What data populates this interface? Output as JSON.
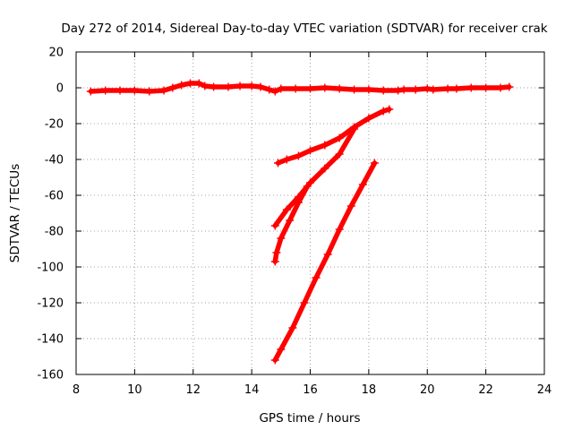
{
  "chart_data": {
    "type": "scatter",
    "title": "Day 272 of 2014, Sidereal Day-to-day VTEC variation (SDTVAR) for receiver crak",
    "xlabel": "GPS time / hours",
    "ylabel": "SDTVAR / TECUs",
    "xlim": [
      8,
      24
    ],
    "ylim": [
      -160,
      20
    ],
    "xticks": [
      8,
      10,
      12,
      14,
      16,
      18,
      20,
      22,
      24
    ],
    "yticks": [
      -160,
      -140,
      -120,
      -100,
      -80,
      -60,
      -40,
      -20,
      0,
      20
    ],
    "grid": true,
    "marker": "plus",
    "color": "#ff0000",
    "series": [
      {
        "x": [
          8.5,
          9.0,
          9.5,
          10.0,
          10.5,
          11.0,
          11.3,
          11.6,
          11.9,
          12.2,
          12.4,
          12.7,
          13.2,
          13.6,
          14.0,
          14.3,
          14.6,
          14.8,
          15.0,
          15.5,
          16.0,
          16.5,
          17.0,
          17.5,
          18.0,
          18.5,
          19.0,
          19.2,
          19.6,
          20.0,
          20.2,
          20.7,
          21.0,
          21.5,
          22.0,
          22.5,
          22.8
        ],
        "y": [
          -2,
          -1.5,
          -1.5,
          -1.5,
          -2,
          -1.5,
          0,
          1.5,
          2.5,
          2.5,
          1,
          0.5,
          0.5,
          1,
          1,
          0.5,
          -1,
          -2,
          -0.5,
          -0.5,
          -0.5,
          0,
          -0.5,
          -1,
          -1,
          -1.5,
          -1.5,
          -1,
          -1,
          -0.5,
          -1,
          -0.5,
          -0.5,
          0,
          0,
          0,
          0.5
        ]
      },
      {
        "x": [
          14.9,
          15.2,
          15.6,
          16.0,
          16.5,
          17.0,
          17.5,
          18.0,
          18.5,
          18.7
        ],
        "y": [
          -42,
          -40,
          -38,
          -35,
          -32,
          -28,
          -22,
          -17,
          -13,
          -12
        ]
      },
      {
        "x": [
          14.8,
          15.2,
          15.6,
          16.0,
          16.5,
          17.0,
          17.5
        ],
        "y": [
          -77,
          -68,
          -61,
          -53,
          -45,
          -37,
          -23
        ]
      },
      {
        "x": [
          14.8,
          14.85,
          15.0,
          15.3,
          15.6,
          15.9
        ],
        "y": [
          -97,
          -92,
          -84,
          -74,
          -64,
          -55
        ]
      },
      {
        "x": [
          14.8,
          15.0,
          15.4,
          15.8,
          16.2,
          16.6,
          17.0,
          17.4,
          17.8,
          18.2
        ],
        "y": [
          -152,
          -146,
          -134,
          -120,
          -106,
          -93,
          -79,
          -66,
          -54,
          -42
        ]
      }
    ]
  }
}
